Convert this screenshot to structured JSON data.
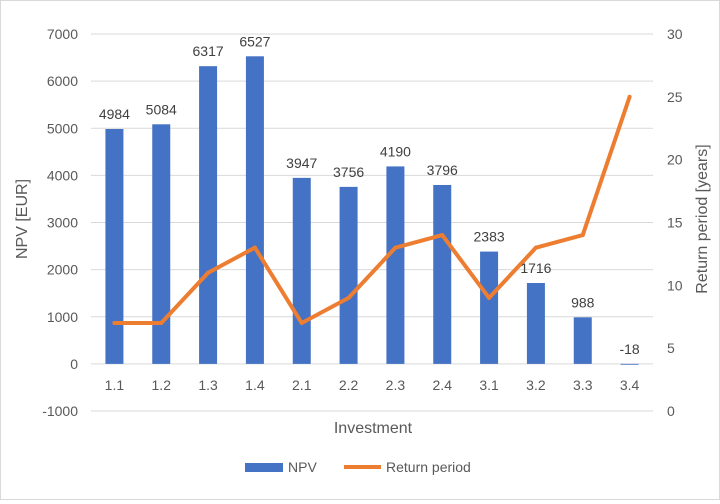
{
  "chart_data": {
    "type": "bar",
    "categories": [
      "1.1",
      "1.2",
      "1.3",
      "1.4",
      "2.1",
      "2.2",
      "2.3",
      "2.4",
      "3.1",
      "3.2",
      "3.3",
      "3.4"
    ],
    "series": [
      {
        "name": "NPV",
        "type": "bar",
        "axis": "left",
        "color": "#4472c4",
        "values": [
          4984,
          5084,
          6317,
          6527,
          3947,
          3756,
          4190,
          3796,
          2383,
          1716,
          988,
          -18
        ],
        "labels": [
          "4984",
          "5084",
          "6317",
          "6527",
          "3947",
          "3756",
          "4190",
          "3796",
          "2383",
          "1716",
          "988",
          "-18"
        ]
      },
      {
        "name": "Return period",
        "type": "line",
        "axis": "right",
        "color": "#ed7d31",
        "values": [
          7,
          7,
          11,
          13,
          7,
          9,
          13,
          14,
          9,
          13,
          14,
          25
        ]
      }
    ],
    "title": "",
    "xlabel": "Investment",
    "ylabel": "NPV [EUR]",
    "y2label": "Return period [years]",
    "ylim": [
      -1000,
      7000
    ],
    "y2lim": [
      0,
      30
    ],
    "yticks": [
      -1000,
      0,
      1000,
      2000,
      3000,
      4000,
      5000,
      6000,
      7000
    ],
    "y2ticks": [
      0,
      5,
      10,
      15,
      20,
      25,
      30
    ],
    "grid": true,
    "legend_position": "bottom"
  }
}
